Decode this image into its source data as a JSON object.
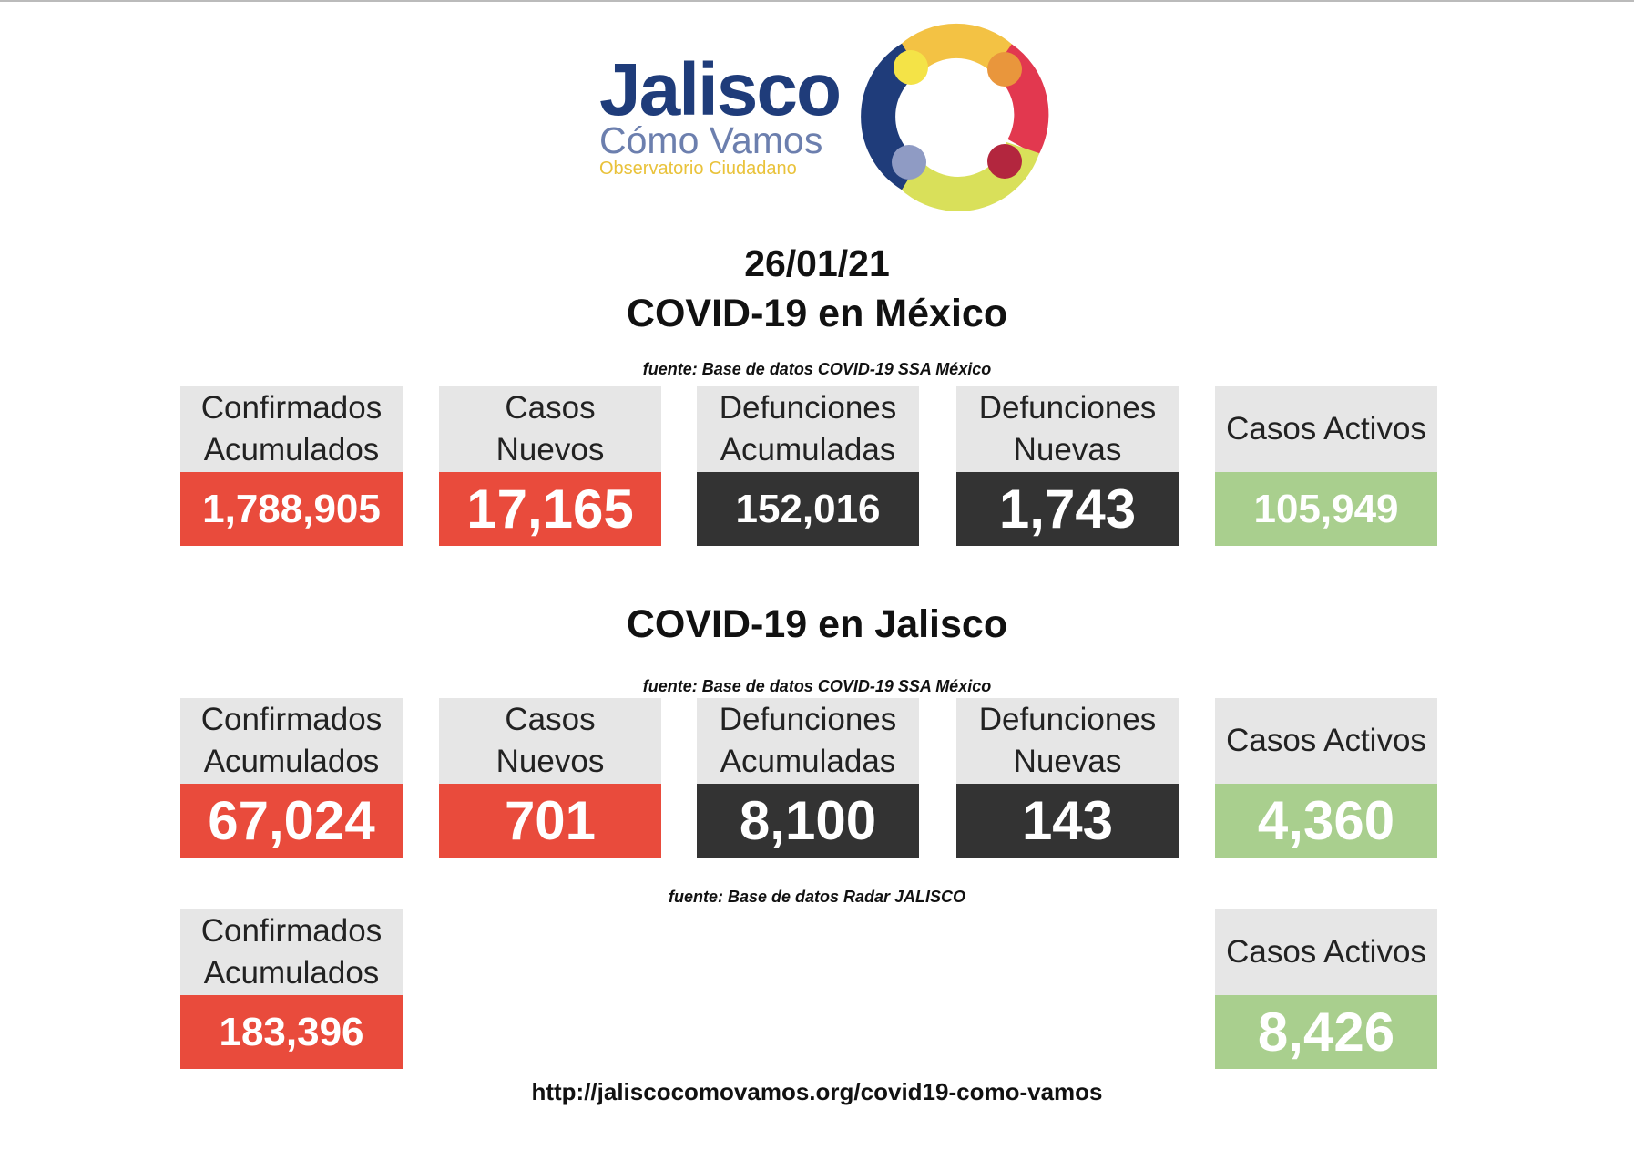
{
  "logo": {
    "title": "Jalisco",
    "subtitle": "Cómo Vamos",
    "tagline": "Observatorio Ciudadano"
  },
  "date": "26/01/21",
  "mexico": {
    "title": "COVID-19 en México",
    "source": "fuente: Base de datos COVID-19 SSA México",
    "cards": [
      {
        "label": [
          "Confirmados",
          "Acumulados"
        ],
        "value": "1,788,905"
      },
      {
        "label": [
          "Casos",
          "Nuevos"
        ],
        "value": "17,165"
      },
      {
        "label": [
          "Defunciones",
          "Acumuladas"
        ],
        "value": "152,016"
      },
      {
        "label": [
          "Defunciones",
          "Nuevas"
        ],
        "value": "1,743"
      },
      {
        "label": [
          "Casos Activos"
        ],
        "value": "105,949"
      }
    ]
  },
  "jalisco": {
    "title": "COVID-19 en Jalisco",
    "source": "fuente: Base de datos COVID-19 SSA México",
    "cards": [
      {
        "label": [
          "Confirmados",
          "Acumulados"
        ],
        "value": "67,024"
      },
      {
        "label": [
          "Casos",
          "Nuevos"
        ],
        "value": "701"
      },
      {
        "label": [
          "Defunciones",
          "Acumuladas"
        ],
        "value": "8,100"
      },
      {
        "label": [
          "Defunciones",
          "Nuevas"
        ],
        "value": "143"
      },
      {
        "label": [
          "Casos Activos"
        ],
        "value": "4,360"
      }
    ]
  },
  "radar": {
    "source": "fuente: Base de datos Radar JALISCO",
    "cards": [
      {
        "label": [
          "Confirmados",
          "Acumulados"
        ],
        "value": "183,396"
      },
      {
        "label": [
          "Casos Activos"
        ],
        "value": "8,426"
      }
    ]
  },
  "url": "http://jaliscocomovamos.org/covid19-como-vamos"
}
